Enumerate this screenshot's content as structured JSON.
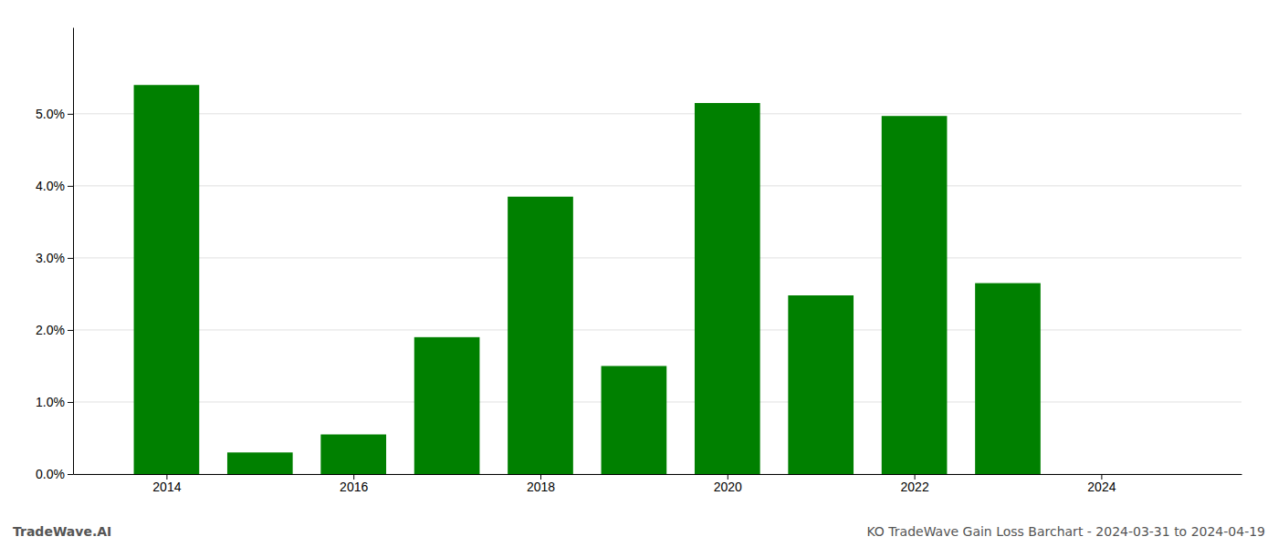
{
  "chart_data": {
    "type": "bar",
    "x": [
      2014,
      2015,
      2016,
      2017,
      2018,
      2019,
      2020,
      2021,
      2022,
      2023
    ],
    "values": [
      0.054,
      0.003,
      0.0055,
      0.019,
      0.0385,
      0.015,
      0.0515,
      0.0248,
      0.0497,
      0.0265
    ],
    "color": "#008000",
    "xlim": [
      2013.0,
      2025.5
    ],
    "xticks": [
      2014,
      2016,
      2018,
      2020,
      2022,
      2024
    ],
    "ylim": [
      0,
      0.062
    ],
    "yticks": [
      {
        "value": 0.0,
        "label": "0.0%"
      },
      {
        "value": 0.01,
        "label": "1.0%"
      },
      {
        "value": 0.02,
        "label": "2.0%"
      },
      {
        "value": 0.03,
        "label": "3.0%"
      },
      {
        "value": 0.04,
        "label": "4.0%"
      },
      {
        "value": 0.05,
        "label": "5.0%"
      }
    ],
    "grid": true,
    "annotations": [
      "TradeWave.AI",
      "KO TradeWave Gain Loss Barchart - 2024-03-31 to 2024-04-19"
    ]
  }
}
